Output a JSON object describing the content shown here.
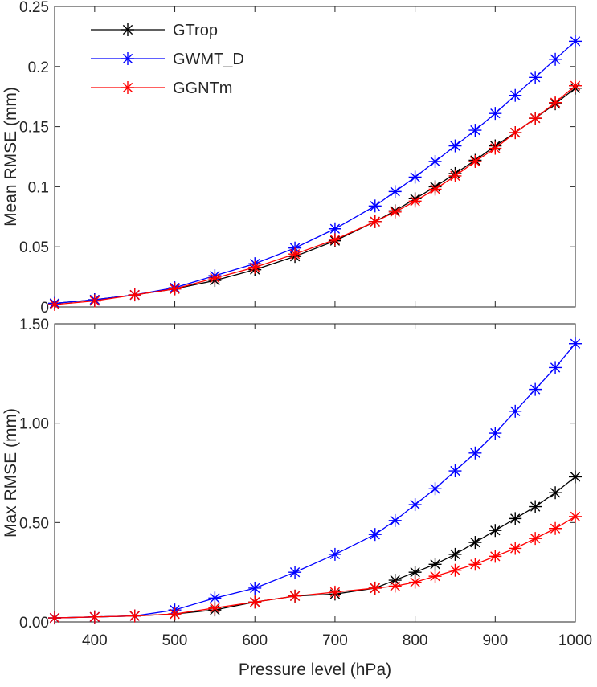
{
  "chart_data": [
    {
      "type": "line",
      "ylabel": "Mean RMSE (mm)",
      "xlabel": "",
      "xlim": [
        350,
        1000
      ],
      "ylim": [
        0,
        0.25
      ],
      "xticks": [
        400,
        500,
        600,
        700,
        800,
        900,
        1000
      ],
      "xtick_labels_shown": false,
      "yticks": [
        0,
        0.05,
        0.1,
        0.15,
        0.2,
        0.25
      ],
      "ytick_labels": [
        "0",
        "0.05",
        "0.1",
        "0.15",
        "0.2",
        "0.25"
      ],
      "legend_position": "top-left",
      "grid": false,
      "x": [
        350,
        400,
        450,
        500,
        550,
        600,
        650,
        700,
        750,
        775,
        800,
        825,
        850,
        875,
        900,
        925,
        950,
        975,
        1000
      ],
      "series": [
        {
          "name": "GTrop",
          "color": "#000000",
          "marker": "asterisk",
          "values": [
            0.003,
            0.006,
            0.01,
            0.015,
            0.022,
            0.031,
            0.042,
            0.055,
            0.071,
            0.08,
            0.09,
            0.1,
            0.111,
            0.122,
            0.134,
            0.145,
            0.157,
            0.169,
            0.182
          ]
        },
        {
          "name": "GWMT_D",
          "color": "#0000ff",
          "marker": "asterisk",
          "values": [
            0.003,
            0.006,
            0.01,
            0.016,
            0.026,
            0.036,
            0.049,
            0.065,
            0.084,
            0.096,
            0.108,
            0.121,
            0.134,
            0.147,
            0.161,
            0.176,
            0.191,
            0.206,
            0.221
          ]
        },
        {
          "name": "GGNTm",
          "color": "#ff0000",
          "marker": "asterisk",
          "values": [
            0.002,
            0.005,
            0.01,
            0.015,
            0.024,
            0.033,
            0.044,
            0.056,
            0.071,
            0.079,
            0.088,
            0.098,
            0.109,
            0.121,
            0.132,
            0.145,
            0.157,
            0.17,
            0.184
          ]
        }
      ]
    },
    {
      "type": "line",
      "ylabel": "Max RMSE (mm)",
      "xlabel": "Pressure level (hPa)",
      "xlim": [
        350,
        1000
      ],
      "ylim": [
        0,
        1.5
      ],
      "xticks": [
        400,
        500,
        600,
        700,
        800,
        900,
        1000
      ],
      "xtick_labels": [
        "400",
        "500",
        "600",
        "700",
        "800",
        "900",
        "1000"
      ],
      "yticks": [
        0,
        0.5,
        1.0,
        1.5
      ],
      "ytick_labels": [
        "0.00",
        "0.50",
        "1.00",
        "1.50"
      ],
      "grid": false,
      "x": [
        350,
        400,
        450,
        500,
        550,
        600,
        650,
        700,
        750,
        775,
        800,
        825,
        850,
        875,
        900,
        925,
        950,
        975,
        1000
      ],
      "series": [
        {
          "name": "GTrop",
          "color": "#000000",
          "marker": "asterisk",
          "values": [
            0.02,
            0.025,
            0.03,
            0.04,
            0.06,
            0.1,
            0.13,
            0.14,
            0.17,
            0.21,
            0.25,
            0.29,
            0.34,
            0.4,
            0.46,
            0.52,
            0.58,
            0.65,
            0.73
          ]
        },
        {
          "name": "GWMT_D",
          "color": "#0000ff",
          "marker": "asterisk",
          "values": [
            0.02,
            0.025,
            0.03,
            0.06,
            0.12,
            0.17,
            0.25,
            0.34,
            0.44,
            0.51,
            0.59,
            0.67,
            0.76,
            0.85,
            0.95,
            1.06,
            1.17,
            1.28,
            1.4
          ]
        },
        {
          "name": "GGNTm",
          "color": "#ff0000",
          "marker": "asterisk",
          "values": [
            0.02,
            0.025,
            0.03,
            0.04,
            0.07,
            0.1,
            0.13,
            0.15,
            0.17,
            0.18,
            0.2,
            0.23,
            0.26,
            0.29,
            0.33,
            0.37,
            0.42,
            0.47,
            0.53
          ]
        }
      ]
    }
  ]
}
